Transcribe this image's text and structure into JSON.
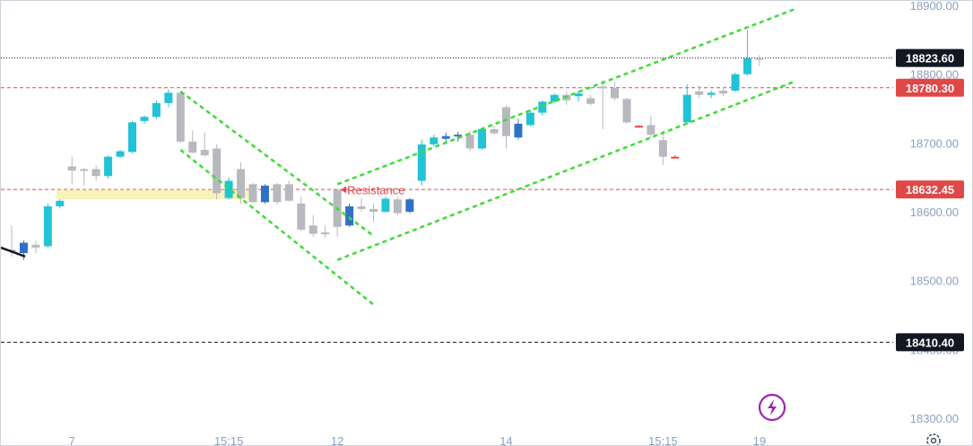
{
  "colors": {
    "bull": "#22c3d6",
    "bull_dark": "#2f72c4",
    "bear": "#b7b9bf",
    "bear_red": "#e04848",
    "level_red": "#e04848",
    "level_dark": "#131722",
    "channel": "#3ddc35",
    "highlight": "#f6f2b4",
    "axis_text": "#8aa1c1",
    "brand": "#9b27b0"
  },
  "chart_data": {
    "type": "candlestick",
    "y_axis": {
      "ylim": [
        18262,
        18904
      ],
      "ticks": [
        18300,
        18400,
        18500,
        18600,
        18700,
        18800,
        18900
      ],
      "tick_labels": [
        "18300.00",
        "18400.00",
        "18500.00",
        "18600.00",
        "18700.00",
        "18800.00",
        "18900.00"
      ]
    },
    "x_axis": {
      "tick_labels": [
        {
          "label": "7",
          "bar": 5
        },
        {
          "label": "15:15",
          "bar": 18
        },
        {
          "label": "12",
          "bar": 27
        },
        {
          "label": "14",
          "bar": 41
        },
        {
          "label": "15:15",
          "bar": 54
        },
        {
          "label": "19",
          "bar": 62
        }
      ]
    },
    "candles": [
      {
        "o": 18545,
        "h": 18580,
        "l": 18535,
        "c": 18545,
        "color": "bear"
      },
      {
        "o": 18540,
        "h": 18558,
        "l": 18530,
        "c": 18555,
        "color": "bull_dark"
      },
      {
        "o": 18548,
        "h": 18558,
        "l": 18540,
        "c": 18552,
        "color": "bear"
      },
      {
        "o": 18550,
        "h": 18612,
        "l": 18548,
        "c": 18608,
        "color": "bull"
      },
      {
        "o": 18608,
        "h": 18618,
        "l": 18605,
        "c": 18616,
        "color": "bull"
      },
      {
        "o": 18666,
        "h": 18680,
        "l": 18640,
        "c": 18660,
        "color": "bear"
      },
      {
        "o": 18662,
        "h": 18664,
        "l": 18638,
        "c": 18662,
        "color": "bear"
      },
      {
        "o": 18662,
        "h": 18668,
        "l": 18645,
        "c": 18652,
        "color": "bear"
      },
      {
        "o": 18652,
        "h": 18682,
        "l": 18648,
        "c": 18680,
        "color": "bull"
      },
      {
        "o": 18680,
        "h": 18690,
        "l": 18678,
        "c": 18688,
        "color": "bull"
      },
      {
        "o": 18687,
        "h": 18732,
        "l": 18685,
        "c": 18730,
        "color": "bull"
      },
      {
        "o": 18732,
        "h": 18740,
        "l": 18728,
        "c": 18738,
        "color": "bull"
      },
      {
        "o": 18738,
        "h": 18762,
        "l": 18735,
        "c": 18758,
        "color": "bull"
      },
      {
        "o": 18758,
        "h": 18778,
        "l": 18752,
        "c": 18773,
        "color": "bull"
      },
      {
        "o": 18773,
        "h": 18775,
        "l": 18700,
        "c": 18702,
        "color": "bear"
      },
      {
        "o": 18702,
        "h": 18718,
        "l": 18685,
        "c": 18686,
        "color": "bear"
      },
      {
        "o": 18690,
        "h": 18715,
        "l": 18680,
        "c": 18682,
        "color": "bear"
      },
      {
        "o": 18692,
        "h": 18698,
        "l": 18618,
        "c": 18627,
        "color": "bear"
      },
      {
        "o": 18620,
        "h": 18650,
        "l": 18618,
        "c": 18645,
        "color": "bull"
      },
      {
        "o": 18662,
        "h": 18672,
        "l": 18612,
        "c": 18620,
        "color": "bear"
      },
      {
        "o": 18640,
        "h": 18642,
        "l": 18612,
        "c": 18614,
        "color": "bear"
      },
      {
        "o": 18638,
        "h": 18640,
        "l": 18612,
        "c": 18614,
        "color": "bull_dark"
      },
      {
        "o": 18640,
        "h": 18642,
        "l": 18610,
        "c": 18614,
        "color": "bear"
      },
      {
        "o": 18640,
        "h": 18645,
        "l": 18615,
        "c": 18616,
        "color": "bear"
      },
      {
        "o": 18612,
        "h": 18622,
        "l": 18572,
        "c": 18574,
        "color": "bear"
      },
      {
        "o": 18580,
        "h": 18595,
        "l": 18564,
        "c": 18568,
        "color": "bear"
      },
      {
        "o": 18570,
        "h": 18580,
        "l": 18562,
        "c": 18568,
        "color": "bear"
      },
      {
        "o": 18632,
        "h": 18633,
        "l": 18564,
        "c": 18578,
        "color": "bear"
      },
      {
        "o": 18580,
        "h": 18612,
        "l": 18578,
        "c": 18608,
        "color": "bull_dark"
      },
      {
        "o": 18608,
        "h": 18620,
        "l": 18600,
        "c": 18604,
        "color": "bear"
      },
      {
        "o": 18604,
        "h": 18612,
        "l": 18585,
        "c": 18600,
        "color": "bear"
      },
      {
        "o": 18600,
        "h": 18622,
        "l": 18598,
        "c": 18619,
        "color": "bull"
      },
      {
        "o": 18618,
        "h": 18622,
        "l": 18595,
        "c": 18598,
        "color": "bear"
      },
      {
        "o": 18618,
        "h": 18620,
        "l": 18598,
        "c": 18600,
        "color": "bull_dark"
      },
      {
        "o": 18645,
        "h": 18705,
        "l": 18638,
        "c": 18698,
        "color": "bull"
      },
      {
        "o": 18698,
        "h": 18712,
        "l": 18695,
        "c": 18708,
        "color": "bull"
      },
      {
        "o": 18706,
        "h": 18715,
        "l": 18700,
        "c": 18710,
        "color": "bull_dark"
      },
      {
        "o": 18710,
        "h": 18716,
        "l": 18702,
        "c": 18712,
        "color": "bull_dark"
      },
      {
        "o": 18712,
        "h": 18718,
        "l": 18688,
        "c": 18692,
        "color": "bear"
      },
      {
        "o": 18692,
        "h": 18722,
        "l": 18690,
        "c": 18720,
        "color": "bull"
      },
      {
        "o": 18720,
        "h": 18725,
        "l": 18712,
        "c": 18714,
        "color": "bear"
      },
      {
        "o": 18752,
        "h": 18755,
        "l": 18692,
        "c": 18710,
        "color": "bear"
      },
      {
        "o": 18708,
        "h": 18735,
        "l": 18705,
        "c": 18728,
        "color": "bull_dark"
      },
      {
        "o": 18726,
        "h": 18748,
        "l": 18724,
        "c": 18744,
        "color": "bull"
      },
      {
        "o": 18744,
        "h": 18762,
        "l": 18740,
        "c": 18760,
        "color": "bull"
      },
      {
        "o": 18760,
        "h": 18772,
        "l": 18758,
        "c": 18770,
        "color": "bull"
      },
      {
        "o": 18770,
        "h": 18775,
        "l": 18755,
        "c": 18762,
        "color": "bear"
      },
      {
        "o": 18768,
        "h": 18776,
        "l": 18760,
        "c": 18772,
        "color": "bull"
      },
      {
        "o": 18765,
        "h": 18770,
        "l": 18755,
        "c": 18757,
        "color": "bear"
      },
      {
        "o": 18780,
        "h": 18792,
        "l": 18720,
        "c": 18782,
        "color": "bear"
      },
      {
        "o": 18780,
        "h": 18788,
        "l": 18762,
        "c": 18765,
        "color": "bear"
      },
      {
        "o": 18764,
        "h": 18766,
        "l": 18728,
        "c": 18730,
        "color": "bear"
      },
      {
        "o": 18725,
        "h": 18726,
        "l": 18722,
        "c": 18723,
        "color": "bear_red"
      },
      {
        "o": 18726,
        "h": 18740,
        "l": 18708,
        "c": 18712,
        "color": "bear"
      },
      {
        "o": 18704,
        "h": 18718,
        "l": 18668,
        "c": 18680,
        "color": "bear"
      },
      {
        "o": 18680,
        "h": 18682,
        "l": 18678,
        "c": 18678,
        "color": "bear_red"
      },
      {
        "o": 18730,
        "h": 18785,
        "l": 18728,
        "c": 18770,
        "color": "bull"
      },
      {
        "o": 18770,
        "h": 18784,
        "l": 18765,
        "c": 18775,
        "color": "bear"
      },
      {
        "o": 18770,
        "h": 18776,
        "l": 18765,
        "c": 18773,
        "color": "bull"
      },
      {
        "o": 18772,
        "h": 18782,
        "l": 18768,
        "c": 18776,
        "color": "bear"
      },
      {
        "o": 18776,
        "h": 18802,
        "l": 18774,
        "c": 18800,
        "color": "bull"
      },
      {
        "o": 18800,
        "h": 18864,
        "l": 18798,
        "c": 18823,
        "color": "bull"
      },
      {
        "o": 18822,
        "h": 18828,
        "l": 18812,
        "c": 18823.6,
        "color": "bear"
      }
    ],
    "levels": [
      {
        "value": 18823.6,
        "label": "18823.60",
        "style": "dotted",
        "color": "level_dark"
      },
      {
        "value": 18780.3,
        "label": "18780.30",
        "style": "dashed",
        "color": "level_red"
      },
      {
        "value": 18632.45,
        "label": "18632.45",
        "style": "dashed",
        "color": "level_red"
      },
      {
        "value": 18410.4,
        "label": "18410.40",
        "style": "dashed",
        "color": "level_dark"
      }
    ],
    "annotations": [
      {
        "text": "Resistance",
        "bar": 27,
        "value": 18632
      }
    ],
    "channel_lines": [
      {
        "from": {
          "bar": 14,
          "value": 18775
        },
        "to": {
          "bar": 30,
          "value": 18565
        }
      },
      {
        "from": {
          "bar": 14,
          "value": 18690
        },
        "to": {
          "bar": 30,
          "value": 18465
        }
      },
      {
        "from": {
          "bar": 27,
          "value": 18640
        },
        "to": {
          "bar": 65,
          "value": 18895
        }
      },
      {
        "from": {
          "bar": 27,
          "value": 18530
        },
        "to": {
          "bar": 65,
          "value": 18790
        }
      }
    ],
    "highlight_zone": {
      "from_bar": 4,
      "to_bar": 20,
      "low": 18618,
      "high": 18632
    }
  }
}
